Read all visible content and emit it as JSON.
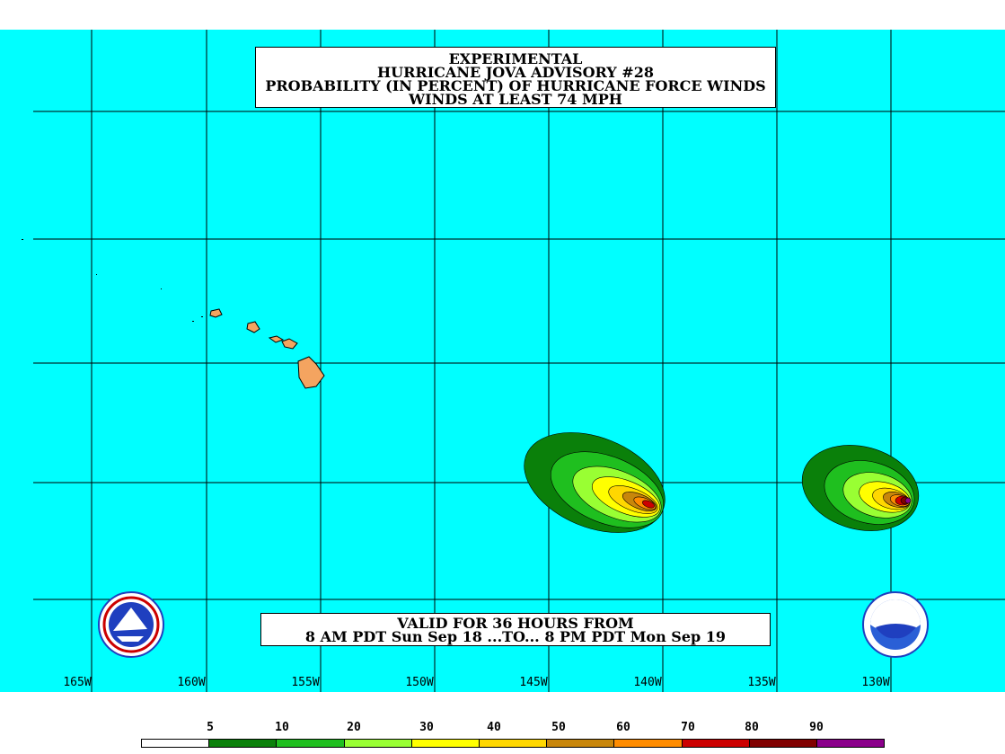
{
  "title": {
    "line1": "EXPERIMENTAL",
    "line2": "HURRICANE JOVA ADVISORY #28",
    "line3": "PROBABILITY (IN PERCENT) OF HURRICANE FORCE WINDS",
    "line4": "WINDS AT LEAST 74 MPH"
  },
  "valid": {
    "line1": "VALID FOR 36 HOURS FROM",
    "line2": "8 AM PDT Sun Sep 18 ...TO... 8 PM PDT Mon Sep 19"
  },
  "longitudes": [
    "165W",
    "160W",
    "155W",
    "150W",
    "145W",
    "140W",
    "135W",
    "130W"
  ],
  "legend": {
    "labels": [
      "5",
      "10",
      "20",
      "30",
      "40",
      "50",
      "60",
      "70",
      "80",
      "90"
    ],
    "colors": [
      "#ffffff",
      "#0a800a",
      "#1fbf1f",
      "#99ff33",
      "#ffff00",
      "#ffd700",
      "#c8860b",
      "#ff8c00",
      "#cc0000",
      "#800000",
      "#8b008b"
    ]
  },
  "colors": {
    "ocean": "#00ffff",
    "land": "#f4a460"
  },
  "icons": [
    "nws-logo-icon",
    "noaa-logo-icon"
  ]
}
